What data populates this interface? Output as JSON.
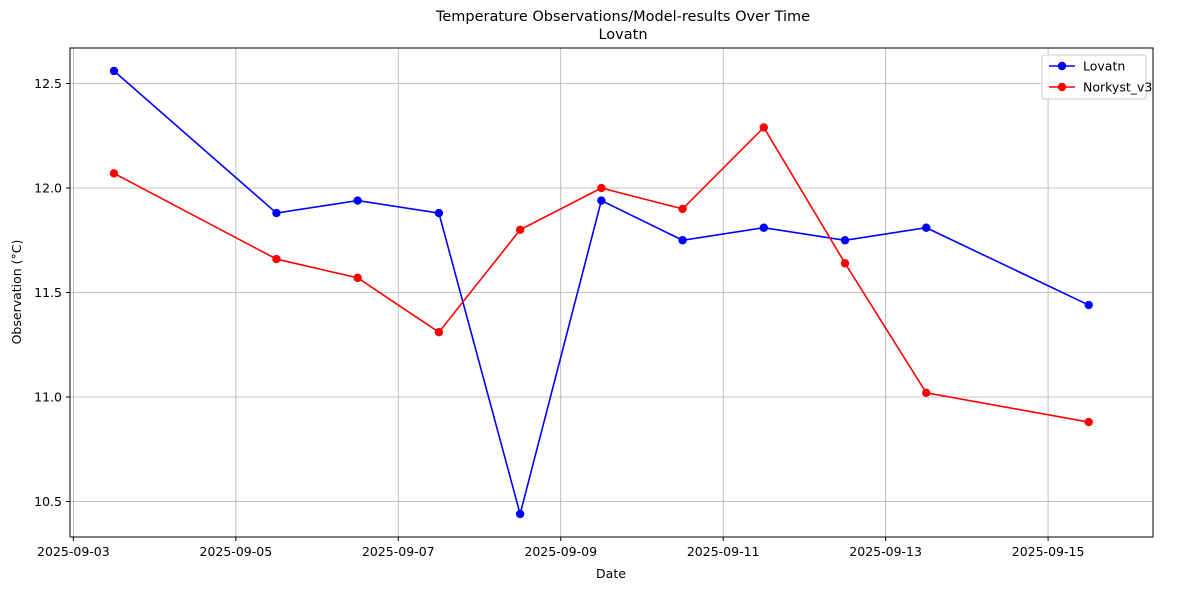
{
  "chart_data": {
    "type": "line",
    "title": "Temperature Observations/Model-results Over Time",
    "subtitle": "Lovatn",
    "xlabel": "Date",
    "ylabel": "Observation (°C)",
    "x": [
      "2025-09-03 12:00",
      "2025-09-05 12:00",
      "2025-09-06 12:00",
      "2025-09-07 12:00",
      "2025-09-08 12:00",
      "2025-09-09 12:00",
      "2025-09-10 12:00",
      "2025-09-11 12:00",
      "2025-09-12 12:00",
      "2025-09-13 12:00",
      "2025-09-15 12:00"
    ],
    "series": [
      {
        "name": "Lovatn",
        "color": "#0000ff",
        "values": [
          12.56,
          11.88,
          11.94,
          11.88,
          10.44,
          11.94,
          11.75,
          11.81,
          11.75,
          11.81,
          11.44
        ]
      },
      {
        "name": "Norkyst_v3",
        "color": "#ff0000",
        "values": [
          12.07,
          11.66,
          11.57,
          11.31,
          11.8,
          12.0,
          11.9,
          12.29,
          11.64,
          11.02,
          10.88
        ]
      }
    ],
    "xticks": [
      "2025-09-03",
      "2025-09-05",
      "2025-09-07",
      "2025-09-09",
      "2025-09-11",
      "2025-09-13",
      "2025-09-15"
    ],
    "yticks": [
      10.5,
      11.0,
      11.5,
      12.0,
      12.5
    ],
    "xlim": [
      "2025-09-02 23:00",
      "2025-09-16 07:00"
    ],
    "ylim": [
      10.33,
      12.67
    ],
    "grid": true,
    "legend": "top-right"
  }
}
